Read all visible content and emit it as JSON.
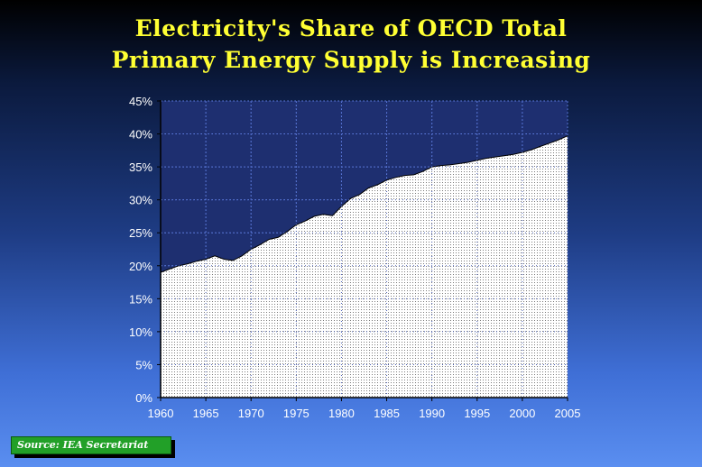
{
  "title": {
    "line1": "Electricity's Share of OECD Total",
    "line2": "Primary Energy Supply is Increasing"
  },
  "source": "Source:  IEA Secretariat",
  "colors": {
    "title": "#ffff33",
    "plot_background": "#1e2f70",
    "area_fill": "#ffffff",
    "grid": "#5d7fe0",
    "text": "#ffffff",
    "source_box": "#22a028"
  },
  "chart_data": {
    "type": "area",
    "title": "Electricity's Share of OECD Total Primary Energy Supply is Increasing",
    "xlabel": "",
    "ylabel": "",
    "xlim": [
      1960,
      2005
    ],
    "ylim": [
      0,
      45
    ],
    "grid": true,
    "x_ticks": [
      1960,
      1965,
      1970,
      1975,
      1980,
      1985,
      1990,
      1995,
      2000,
      2005
    ],
    "x_tick_labels": [
      "1960",
      "1965",
      "1970",
      "1975",
      "1980",
      "1985",
      "1990",
      "1995",
      "2000",
      "2005"
    ],
    "y_ticks": [
      0,
      5,
      10,
      15,
      20,
      25,
      30,
      35,
      40,
      45
    ],
    "y_tick_labels": [
      "0%",
      "5%",
      "10%",
      "15%",
      "20%",
      "25%",
      "30%",
      "35%",
      "40%",
      "45%"
    ],
    "series": [
      {
        "x": [
          1960,
          1961,
          1962,
          1963,
          1964,
          1965,
          1966,
          1967,
          1968,
          1969,
          1970,
          1971,
          1972,
          1973,
          1974,
          1975,
          1976,
          1977,
          1978,
          1979,
          1980,
          1981,
          1982,
          1983,
          1984,
          1985,
          1986,
          1987,
          1988,
          1989,
          1990,
          1991,
          1992,
          1993,
          1994,
          1995,
          1996,
          1997,
          1998,
          1999,
          2000,
          2001,
          2002,
          2003,
          2004,
          2005
        ],
        "values": [
          19.0,
          19.5,
          20.0,
          20.3,
          20.7,
          21.0,
          21.5,
          21.0,
          20.8,
          21.5,
          22.5,
          23.2,
          24.0,
          24.3,
          25.2,
          26.2,
          26.8,
          27.5,
          27.8,
          27.6,
          29.0,
          30.2,
          30.8,
          31.8,
          32.3,
          33.0,
          33.4,
          33.7,
          33.8,
          34.3,
          35.0,
          35.2,
          35.3,
          35.5,
          35.7,
          36.0,
          36.3,
          36.5,
          36.7,
          36.9,
          37.2,
          37.6,
          38.1,
          38.6,
          39.1,
          39.7
        ]
      }
    ]
  }
}
